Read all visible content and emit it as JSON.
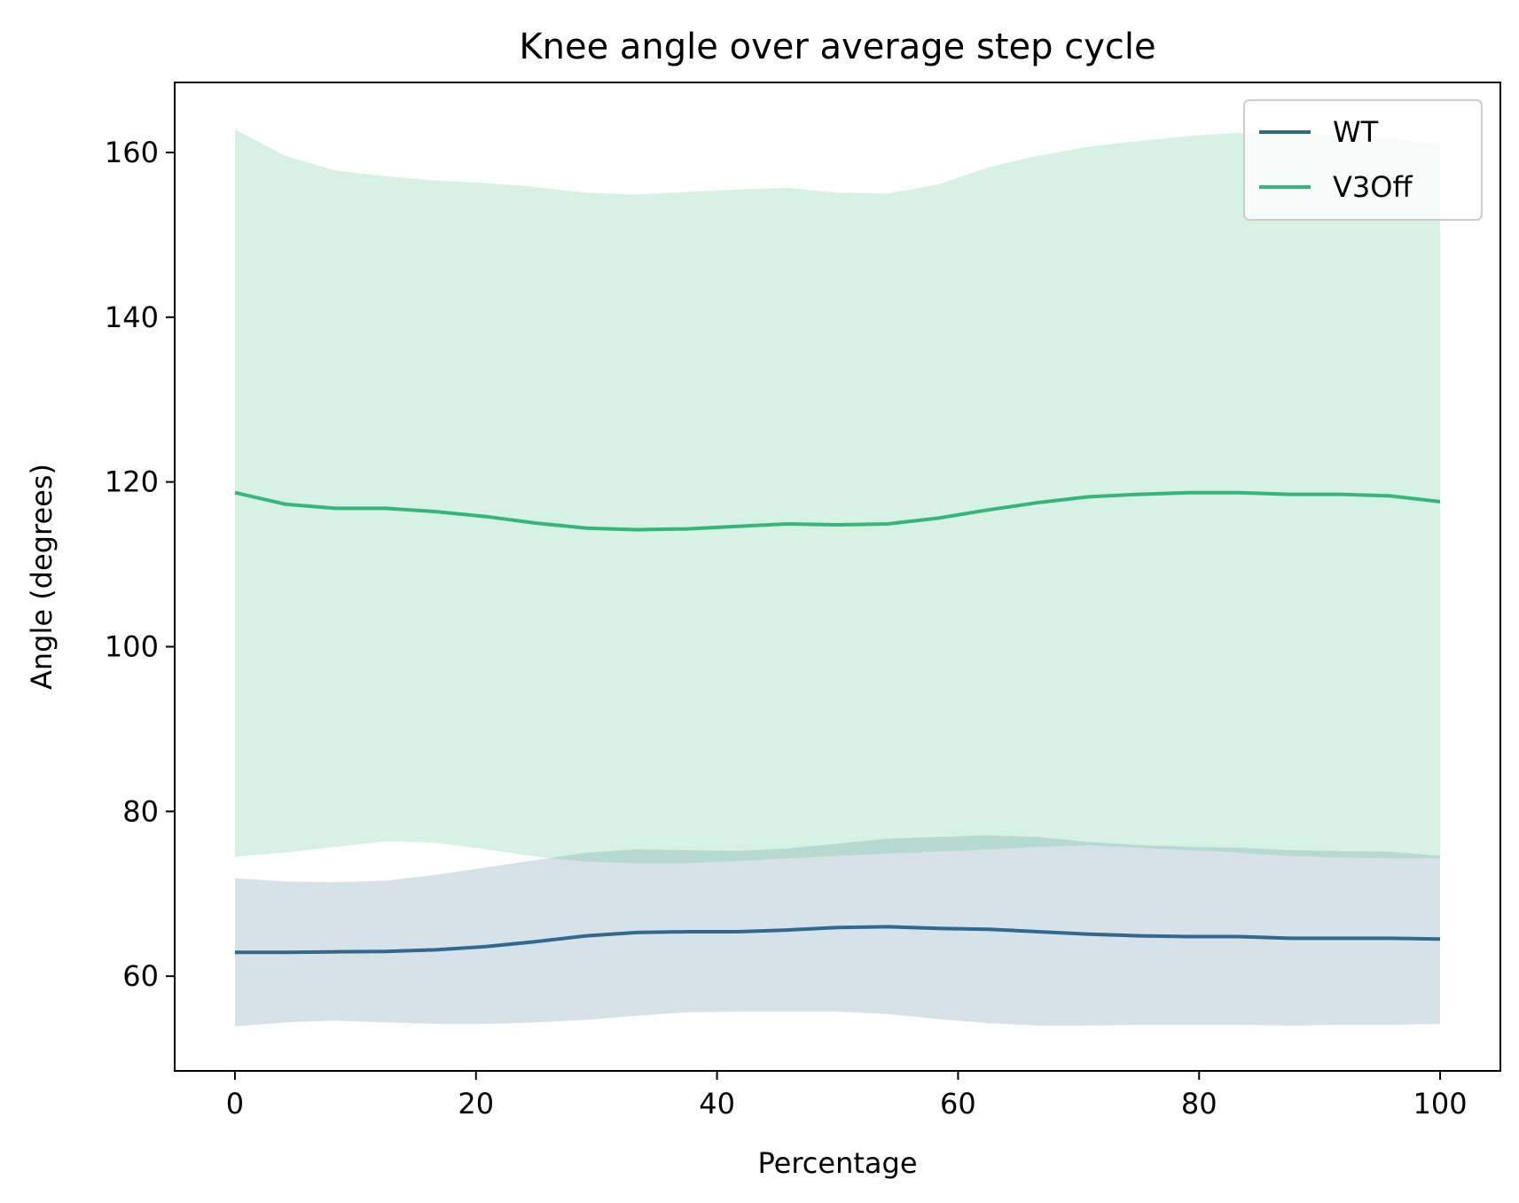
{
  "chart_data": {
    "type": "line",
    "title": "Knee  angle over average step cycle",
    "xlabel": "Percentage",
    "ylabel": "Angle (degrees)",
    "xlim": [
      -5,
      105
    ],
    "ylim": [
      48.5,
      168.5
    ],
    "xticks": [
      0,
      20,
      40,
      60,
      80,
      100
    ],
    "yticks": [
      60,
      80,
      100,
      120,
      140,
      160
    ],
    "grid": false,
    "legend_position": "top-right",
    "x": [
      0,
      4.17,
      8.33,
      12.5,
      16.67,
      20.83,
      25,
      29.17,
      33.33,
      37.5,
      41.67,
      45.83,
      50,
      54.17,
      58.33,
      62.5,
      66.67,
      70.83,
      75,
      79.17,
      83.33,
      87.5,
      91.67,
      95.83,
      100
    ],
    "series": [
      {
        "name": "WT",
        "color": "#31688e",
        "values": [
          62.9,
          62.9,
          62.95,
          63.0,
          63.2,
          63.6,
          64.2,
          64.9,
          65.3,
          65.4,
          65.4,
          65.6,
          65.9,
          66.0,
          65.8,
          65.7,
          65.4,
          65.1,
          64.9,
          64.8,
          64.8,
          64.6,
          64.6,
          64.6,
          64.5
        ],
        "upper": [
          71.9,
          71.5,
          71.4,
          71.6,
          72.3,
          73.2,
          74.1,
          75.0,
          75.4,
          75.3,
          75.2,
          75.5,
          76.1,
          76.7,
          76.9,
          77.1,
          76.9,
          76.3,
          75.9,
          75.7,
          75.6,
          75.3,
          75.2,
          75.1,
          74.6
        ],
        "lower": [
          53.9,
          54.4,
          54.6,
          54.4,
          54.2,
          54.2,
          54.4,
          54.7,
          55.2,
          55.6,
          55.7,
          55.7,
          55.7,
          55.4,
          54.8,
          54.3,
          54.0,
          54.0,
          54.1,
          54.1,
          54.1,
          54.0,
          54.1,
          54.1,
          54.2
        ]
      },
      {
        "name": "V3Off",
        "color": "#35b779",
        "values": [
          118.7,
          117.3,
          116.8,
          116.8,
          116.4,
          115.8,
          115.0,
          114.4,
          114.2,
          114.3,
          114.6,
          114.9,
          114.8,
          114.9,
          115.6,
          116.6,
          117.5,
          118.2,
          118.5,
          118.7,
          118.7,
          118.5,
          118.5,
          118.3,
          117.6
        ],
        "upper": [
          162.8,
          159.6,
          157.8,
          157.1,
          156.6,
          156.3,
          155.8,
          155.1,
          154.9,
          155.2,
          155.5,
          155.7,
          155.1,
          155.0,
          156.1,
          158.2,
          159.6,
          160.7,
          161.4,
          162.0,
          162.4,
          162.4,
          162.0,
          161.7,
          160.9
        ],
        "lower": [
          74.5,
          75.0,
          75.7,
          76.4,
          76.2,
          75.4,
          74.5,
          73.9,
          73.7,
          73.7,
          74.0,
          74.3,
          74.6,
          74.9,
          75.1,
          75.4,
          75.7,
          75.9,
          75.6,
          75.3,
          75.0,
          74.6,
          74.4,
          74.3,
          74.3
        ]
      }
    ]
  }
}
